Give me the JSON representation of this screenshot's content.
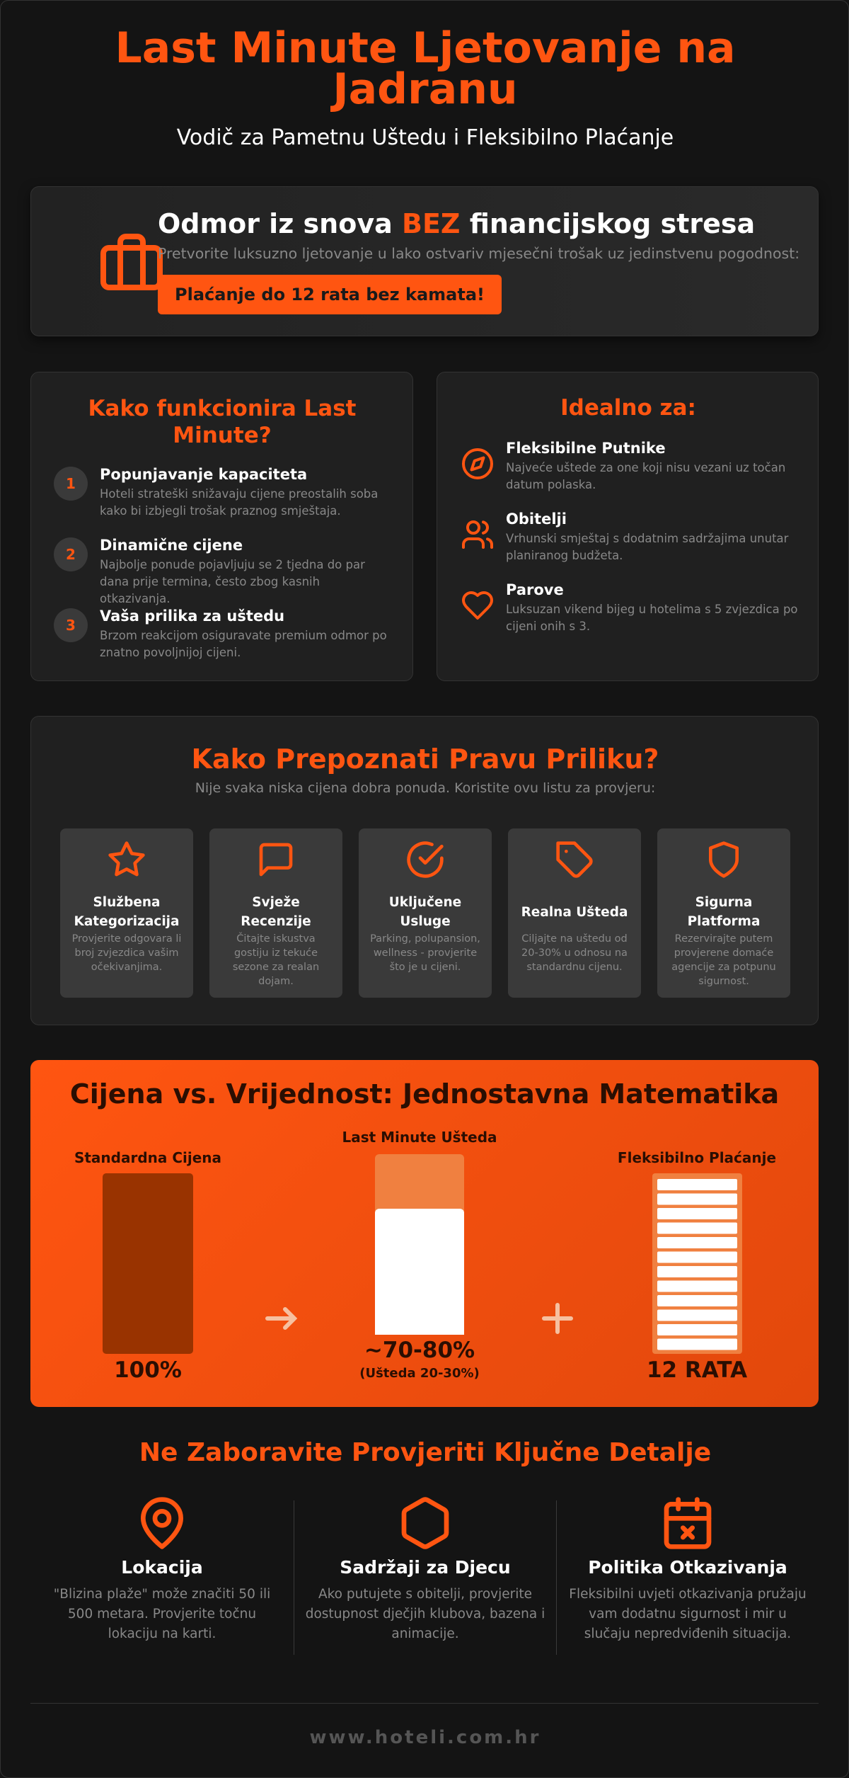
{
  "header": {
    "title": "Last Minute Ljetovanje na Jadranu",
    "subtitle": "Vodič za Pametnu Uštedu i Fleksibilno Plaćanje"
  },
  "hero": {
    "heading_start": "Odmor iz snova",
    "heading_highlight": "BEZ",
    "heading_end": "financijskog stresa",
    "text": "Pretvorite luksuzno ljetovanje u lako ostvariv mjesečni trošak uz jedinstvenu pogodnost:",
    "button": "Plaćanje do 12 rata bez kamata!"
  },
  "how": {
    "title": "Kako funkcionira Last Minute?",
    "steps": [
      {
        "number": "1",
        "title": "Popunjavanje kapaciteta",
        "text": "Hoteli strateški snižavaju cijene preostalih soba kako bi izbjegli trošak praznog smještaja."
      },
      {
        "number": "2",
        "title": "Dinamične cijene",
        "text": "Najbolje ponude pojavljuju se 2 tjedna do par dana prije termina, često zbog kasnih otkazivanja."
      },
      {
        "number": "3",
        "title": "Vaša prilika za uštedu",
        "text": "Brzom reakcijom osiguravate premium odmor po znatno povoljnijoj cijeni."
      }
    ]
  },
  "ideal": {
    "title": "Idealno za:",
    "items": [
      {
        "title": "Fleksibilne Putnike",
        "text": "Najveće uštede za one koji nisu vezani uz točan datum polaska."
      },
      {
        "title": "Obitelji",
        "text": "Vrhunski smještaj s dodatnim sadržajima unutar planiranog budžeta."
      },
      {
        "title": "Parove",
        "text": "Luksuzan vikend bijeg u hotelima s 5 zvjezdica po cijeni onih s 3."
      }
    ]
  },
  "check": {
    "title": "Kako Prepoznati Pravu Priliku?",
    "subtitle": "Nije svaka niska cijena dobra ponuda. Koristite ovu listu za provjeru:",
    "items": [
      {
        "title": "Službena Kategorizacija",
        "text": "Provjerite odgovara li broj zvjezdica vašim očekivanjima."
      },
      {
        "title": "Svježe Recenzije",
        "text": "Čitajte iskustva gostiju iz tekuće sezone za realan dojam."
      },
      {
        "title": "Uključene Usluge",
        "text": "Parking, polupansion, wellness - provjerite što je u cijeni."
      },
      {
        "title": "Realna Ušteda",
        "text": "Ciljajte na uštedu od 20-30% u odnosu na standardnu cijenu."
      },
      {
        "title": "Sigurna Platforma",
        "text": "Rezervirajte putem provjerene domaće agencije za potpunu sigurnost."
      }
    ]
  },
  "math": {
    "title": "Cijena vs. Vrijednost: Jednostavna Matematika",
    "columns": [
      {
        "label": "Standardna Cijena",
        "value": "100%"
      },
      {
        "label": "Last Minute Ušteda",
        "value": "~70-80%",
        "note": "(Ušteda 20-30%)"
      },
      {
        "label": "Fleksibilno Plaćanje",
        "value": "12 RATA"
      }
    ]
  },
  "details": {
    "title": "Ne Zaboravite Provjeriti Ključne Detalje",
    "items": [
      {
        "title": "Lokacija",
        "text": "\"Blizina plaže\" može značiti 50 ili 500 metara. Provjerite točnu lokaciju na karti."
      },
      {
        "title": "Sadržaji za Djecu",
        "text": "Ako putujete s obitelji, provjerite dostupnost dječjih klubova, bazena i animacije."
      },
      {
        "title": "Politika Otkazivanja",
        "text": "Fleksibilni uvjeti otkazivanja pružaju vam dodatnu sigurnost i mir u slučaju nepredviđenih situacija."
      }
    ]
  },
  "footer": {
    "url": "www.hoteli.com.hr"
  }
}
